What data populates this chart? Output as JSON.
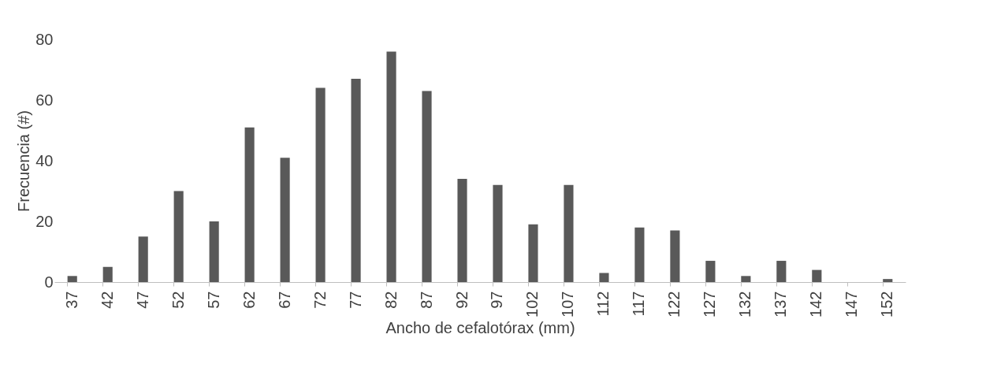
{
  "chart_data": {
    "type": "bar",
    "xlabel": "Ancho de cefalotórax (mm)",
    "ylabel": "Frecuencia (#)",
    "categories": [
      "37",
      "42",
      "47",
      "52",
      "57",
      "62",
      "67",
      "72",
      "77",
      "82",
      "87",
      "92",
      "97",
      "102",
      "107",
      "112",
      "117",
      "122",
      "127",
      "132",
      "137",
      "142",
      "147",
      "152"
    ],
    "values": [
      2,
      5,
      15,
      30,
      20,
      51,
      41,
      64,
      67,
      76,
      63,
      34,
      32,
      19,
      32,
      3,
      18,
      17,
      7,
      2,
      7,
      4,
      0,
      1
    ],
    "color": "#595959",
    "ylim": [
      0,
      80
    ],
    "yticks": [
      0,
      20,
      40,
      60,
      80
    ],
    "grid": false
  }
}
